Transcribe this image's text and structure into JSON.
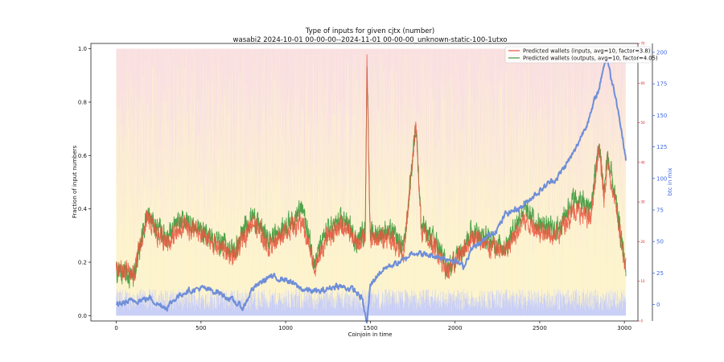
{
  "chart_data": {
    "type": "line",
    "title": "Type of inputs for given cjtx (number)",
    "subtitle": "wasabi2 2024-10-01 00-00-00--2024-11-01 00-00-00_unknown-static-100-1utxo",
    "xlabel": "Coinjoin in time",
    "ylabel": "Fraction of input numbers",
    "y2label": "btc in mix",
    "xlim": [
      -150,
      3080
    ],
    "ylim": [
      -0.02,
      1.02
    ],
    "y2lim": [
      -13,
      207
    ],
    "y3lim": [
      0,
      70
    ],
    "x_ticks": [
      "0",
      "500",
      "1000",
      "1500",
      "2000",
      "2500",
      "3000"
    ],
    "x_tick_values": [
      0,
      500,
      1000,
      1500,
      2000,
      2500,
      3000
    ],
    "y_ticks": [
      "0.0",
      "0.2",
      "0.4",
      "0.6",
      "0.8",
      "1.0"
    ],
    "y_tick_values": [
      0,
      0.2,
      0.4,
      0.6,
      0.8,
      1.0
    ],
    "y2_ticks": [
      "0",
      "25",
      "50",
      "75",
      "100",
      "125",
      "150",
      "175",
      "200"
    ],
    "y2_tick_values": [
      0,
      25,
      50,
      75,
      100,
      125,
      150,
      175,
      200
    ],
    "y3_ticks": [
      "0",
      "10",
      "20",
      "30",
      "40",
      "50",
      "60",
      "70"
    ],
    "y3_tick_values": [
      0,
      10,
      20,
      30,
      40,
      50,
      60,
      70
    ],
    "legend_position": "top-right",
    "n_points": 3010,
    "series": [
      {
        "name": "Predicted wallets (inputs, avg=10, factor=3.8)",
        "color": "#e8553d",
        "axis": "y3",
        "x": [
          0,
          100,
          180,
          250,
          300,
          400,
          500,
          600,
          700,
          800,
          900,
          1000,
          1100,
          1170,
          1250,
          1350,
          1420,
          1470,
          1480,
          1500,
          1600,
          1700,
          1770,
          1800,
          1900,
          1960,
          2000,
          2100,
          2200,
          2300,
          2400,
          2500,
          2600,
          2700,
          2800,
          2850,
          2880,
          2900,
          2950,
          3010
        ],
        "y": [
          0.18,
          0.15,
          0.36,
          0.3,
          0.28,
          0.34,
          0.3,
          0.26,
          0.22,
          0.36,
          0.26,
          0.32,
          0.35,
          0.18,
          0.3,
          0.34,
          0.26,
          0.3,
          0.95,
          0.28,
          0.3,
          0.24,
          0.72,
          0.32,
          0.24,
          0.16,
          0.2,
          0.3,
          0.26,
          0.24,
          0.36,
          0.32,
          0.3,
          0.4,
          0.36,
          0.62,
          0.45,
          0.58,
          0.4,
          0.16
        ]
      },
      {
        "name": "Predicted wallets (outputs, avg=10, factor=4.05)",
        "color": "#3c9a3c",
        "axis": "y3",
        "x": [
          0,
          100,
          180,
          250,
          300,
          400,
          500,
          600,
          700,
          800,
          900,
          1000,
          1100,
          1170,
          1250,
          1350,
          1420,
          1470,
          1480,
          1500,
          1600,
          1700,
          1770,
          1800,
          1900,
          1960,
          2000,
          2100,
          2200,
          2300,
          2400,
          2500,
          2600,
          2700,
          2800,
          2850,
          2880,
          2900,
          2950,
          3010
        ],
        "y": [
          0.17,
          0.14,
          0.38,
          0.32,
          0.3,
          0.36,
          0.32,
          0.28,
          0.24,
          0.38,
          0.28,
          0.34,
          0.4,
          0.2,
          0.32,
          0.36,
          0.28,
          0.32,
          0.96,
          0.3,
          0.32,
          0.26,
          0.73,
          0.34,
          0.26,
          0.17,
          0.22,
          0.32,
          0.28,
          0.26,
          0.4,
          0.34,
          0.32,
          0.44,
          0.4,
          0.64,
          0.47,
          0.6,
          0.42,
          0.17
        ]
      },
      {
        "name": "btc in mix",
        "color": "#6f8ed8",
        "axis": "y2",
        "x": [
          0,
          100,
          200,
          250,
          300,
          350,
          400,
          500,
          600,
          700,
          750,
          800,
          900,
          1000,
          1100,
          1200,
          1300,
          1400,
          1450,
          1480,
          1500,
          1550,
          1600,
          1700,
          1750,
          1800,
          1900,
          2000,
          2050,
          2100,
          2150,
          2200,
          2250,
          2300,
          2400,
          2450,
          2500,
          2550,
          2600,
          2700,
          2750,
          2800,
          2830,
          2850,
          2870,
          2880,
          2900,
          2920,
          2950,
          2980,
          3010
        ],
        "y": [
          0,
          3,
          5,
          0,
          -2,
          5,
          10,
          13,
          10,
          2,
          -3,
          12,
          22,
          20,
          12,
          10,
          15,
          12,
          5,
          -15,
          15,
          25,
          30,
          35,
          42,
          40,
          38,
          35,
          30,
          45,
          48,
          55,
          60,
          72,
          78,
          85,
          90,
          96,
          100,
          120,
          135,
          150,
          165,
          170,
          185,
          190,
          195,
          180,
          165,
          140,
          115
        ]
      }
    ]
  }
}
